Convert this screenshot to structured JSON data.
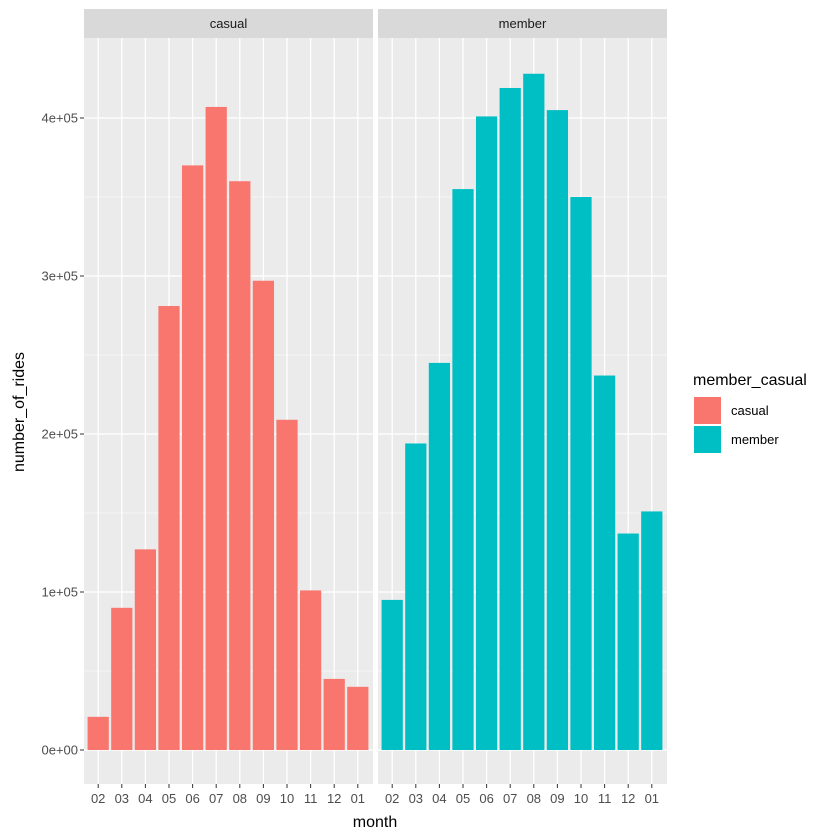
{
  "chart_data": {
    "type": "bar",
    "facet_variable": "member_casual",
    "xlabel": "month",
    "ylabel": "number_of_rides",
    "ylim": [
      0,
      440000
    ],
    "yticks": [
      0,
      100000,
      200000,
      300000,
      400000
    ],
    "ytick_labels": [
      "0e+00",
      "1e+05",
      "2e+05",
      "3e+05",
      "4e+05"
    ],
    "categories": [
      "02",
      "03",
      "04",
      "05",
      "06",
      "07",
      "08",
      "09",
      "10",
      "11",
      "12",
      "01"
    ],
    "panels": [
      {
        "name": "casual",
        "color": "#F8766D",
        "values": [
          21000,
          90000,
          127000,
          281000,
          370000,
          407000,
          360000,
          297000,
          209000,
          101000,
          45000,
          40000
        ]
      },
      {
        "name": "member",
        "color": "#00BFC4",
        "values": [
          95000,
          194000,
          245000,
          355000,
          401000,
          419000,
          428000,
          405000,
          350000,
          237000,
          137000,
          151000
        ]
      }
    ],
    "legend": {
      "title": "member_casual",
      "position": "right",
      "entries": [
        {
          "label": "casual",
          "color": "#F8766D"
        },
        {
          "label": "member",
          "color": "#00BFC4"
        }
      ]
    },
    "panel_background": "#EBEBEB",
    "strip_background": "#D9D9D9",
    "grid_color": "#FFFFFF"
  }
}
